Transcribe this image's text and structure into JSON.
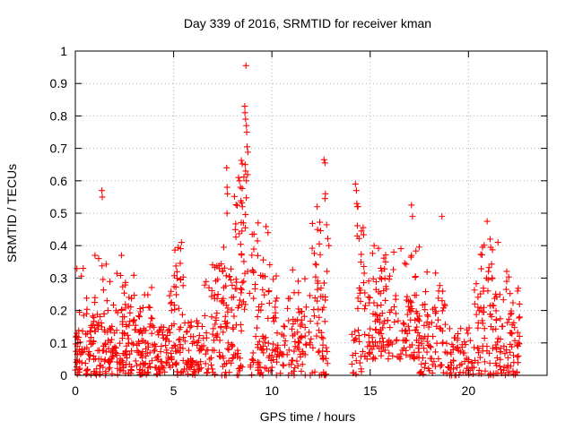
{
  "chart_data": {
    "type": "scatter",
    "title": "Day 339 of 2016, SRMTID for receiver kman",
    "xlabel": "GPS time / hours",
    "ylabel": "SRMTID / TECUs",
    "xlim": [
      0,
      24
    ],
    "ylim": [
      0,
      1
    ],
    "xticks": [
      0,
      5,
      10,
      15,
      20
    ],
    "xtick_labels": [
      "0",
      "5",
      "10",
      "15",
      "20"
    ],
    "yticks": [
      0,
      0.1,
      0.2,
      0.3,
      0.4,
      0.5,
      0.6,
      0.7,
      0.8,
      0.9,
      1
    ],
    "ytick_labels": [
      "0",
      "0.1",
      "0.2",
      "0.3",
      "0.4",
      "0.5",
      "0.6",
      "0.7",
      "0.8",
      "0.9",
      "1"
    ],
    "grid": true,
    "marker": "+",
    "color": "#ff0000",
    "density_bands": [
      {
        "x_start": 0.0,
        "x_end": 1.0,
        "y_low": 0.0,
        "y_high": 0.15,
        "density": 60
      },
      {
        "x_start": 0.0,
        "x_end": 1.0,
        "y_low": 0.15,
        "y_high": 0.33,
        "density": 14
      },
      {
        "x_start": 1.0,
        "x_end": 2.0,
        "y_low": 0.0,
        "y_high": 0.15,
        "density": 55
      },
      {
        "x_start": 1.0,
        "x_end": 2.0,
        "y_low": 0.15,
        "y_high": 0.37,
        "density": 18
      },
      {
        "x_start": 2.0,
        "x_end": 3.0,
        "y_low": 0.0,
        "y_high": 0.2,
        "density": 65
      },
      {
        "x_start": 2.0,
        "x_end": 3.0,
        "y_low": 0.2,
        "y_high": 0.32,
        "density": 16
      },
      {
        "x_start": 3.0,
        "x_end": 4.0,
        "y_low": 0.0,
        "y_high": 0.18,
        "density": 60
      },
      {
        "x_start": 3.0,
        "x_end": 4.0,
        "y_low": 0.18,
        "y_high": 0.3,
        "density": 10
      },
      {
        "x_start": 4.0,
        "x_end": 4.7,
        "y_low": 0.0,
        "y_high": 0.15,
        "density": 45
      },
      {
        "x_start": 4.7,
        "x_end": 5.5,
        "y_low": 0.0,
        "y_high": 0.3,
        "density": 55
      },
      {
        "x_start": 5.0,
        "x_end": 5.5,
        "y_low": 0.3,
        "y_high": 0.42,
        "density": 8
      },
      {
        "x_start": 5.5,
        "x_end": 6.5,
        "y_low": 0.0,
        "y_high": 0.18,
        "density": 60
      },
      {
        "x_start": 6.5,
        "x_end": 7.5,
        "y_low": 0.0,
        "y_high": 0.35,
        "density": 60
      },
      {
        "x_start": 7.5,
        "x_end": 8.5,
        "y_low": 0.0,
        "y_high": 0.3,
        "density": 65
      },
      {
        "x_start": 7.5,
        "x_end": 8.5,
        "y_low": 0.3,
        "y_high": 0.6,
        "density": 20
      },
      {
        "x_start": 8.4,
        "x_end": 8.9,
        "y_low": 0.2,
        "y_high": 0.75,
        "density": 22
      },
      {
        "x_start": 8.9,
        "x_end": 10.0,
        "y_low": 0.0,
        "y_high": 0.35,
        "density": 65
      },
      {
        "x_start": 8.9,
        "x_end": 10.0,
        "y_low": 0.35,
        "y_high": 0.48,
        "density": 8
      },
      {
        "x_start": 10.0,
        "x_end": 11.5,
        "y_low": 0.0,
        "y_high": 0.22,
        "density": 75
      },
      {
        "x_start": 10.0,
        "x_end": 11.5,
        "y_low": 0.22,
        "y_high": 0.35,
        "density": 10
      },
      {
        "x_start": 11.5,
        "x_end": 12.9,
        "y_low": 0.0,
        "y_high": 0.3,
        "density": 70
      },
      {
        "x_start": 12.0,
        "x_end": 12.9,
        "y_low": 0.3,
        "y_high": 0.55,
        "density": 14
      },
      {
        "x_start": 14.0,
        "x_end": 14.6,
        "y_low": 0.0,
        "y_high": 0.15,
        "density": 20
      },
      {
        "x_start": 14.3,
        "x_end": 14.8,
        "y_low": 0.2,
        "y_high": 0.55,
        "density": 18
      },
      {
        "x_start": 14.6,
        "x_end": 16.0,
        "y_low": 0.05,
        "y_high": 0.3,
        "density": 80
      },
      {
        "x_start": 15.0,
        "x_end": 16.0,
        "y_low": 0.3,
        "y_high": 0.4,
        "density": 10
      },
      {
        "x_start": 16.0,
        "x_end": 17.5,
        "y_low": 0.05,
        "y_high": 0.25,
        "density": 75
      },
      {
        "x_start": 16.0,
        "x_end": 17.5,
        "y_low": 0.25,
        "y_high": 0.4,
        "density": 10
      },
      {
        "x_start": 17.5,
        "x_end": 19.0,
        "y_low": 0.0,
        "y_high": 0.22,
        "density": 70
      },
      {
        "x_start": 17.5,
        "x_end": 19.0,
        "y_low": 0.22,
        "y_high": 0.32,
        "density": 8
      },
      {
        "x_start": 19.0,
        "x_end": 20.3,
        "y_low": 0.0,
        "y_high": 0.15,
        "density": 60
      },
      {
        "x_start": 20.3,
        "x_end": 21.5,
        "y_low": 0.0,
        "y_high": 0.3,
        "density": 70
      },
      {
        "x_start": 20.6,
        "x_end": 21.3,
        "y_low": 0.3,
        "y_high": 0.42,
        "density": 12
      },
      {
        "x_start": 21.5,
        "x_end": 22.6,
        "y_low": 0.0,
        "y_high": 0.25,
        "density": 60
      },
      {
        "x_start": 21.5,
        "x_end": 22.6,
        "y_low": 0.25,
        "y_high": 0.34,
        "density": 6
      }
    ],
    "points": [
      {
        "x": 8.68,
        "y": 0.955
      },
      {
        "x": 8.62,
        "y": 0.83
      },
      {
        "x": 8.63,
        "y": 0.81
      },
      {
        "x": 8.66,
        "y": 0.79
      },
      {
        "x": 8.7,
        "y": 0.77
      },
      {
        "x": 8.72,
        "y": 0.75
      },
      {
        "x": 8.74,
        "y": 0.705
      },
      {
        "x": 8.64,
        "y": 0.65
      },
      {
        "x": 8.66,
        "y": 0.63
      },
      {
        "x": 8.7,
        "y": 0.6
      },
      {
        "x": 7.7,
        "y": 0.64
      },
      {
        "x": 7.72,
        "y": 0.58
      },
      {
        "x": 7.74,
        "y": 0.56
      },
      {
        "x": 8.3,
        "y": 0.61
      },
      {
        "x": 8.35,
        "y": 0.6
      },
      {
        "x": 8.4,
        "y": 0.58
      },
      {
        "x": 8.5,
        "y": 0.52
      },
      {
        "x": 8.55,
        "y": 0.47
      },
      {
        "x": 1.35,
        "y": 0.57
      },
      {
        "x": 1.37,
        "y": 0.55
      },
      {
        "x": 12.65,
        "y": 0.665
      },
      {
        "x": 12.7,
        "y": 0.655
      },
      {
        "x": 12.72,
        "y": 0.56
      },
      {
        "x": 12.7,
        "y": 0.545
      },
      {
        "x": 12.3,
        "y": 0.52
      },
      {
        "x": 14.25,
        "y": 0.59
      },
      {
        "x": 14.3,
        "y": 0.57
      },
      {
        "x": 14.32,
        "y": 0.53
      },
      {
        "x": 14.35,
        "y": 0.52
      },
      {
        "x": 17.1,
        "y": 0.525
      },
      {
        "x": 17.15,
        "y": 0.49
      },
      {
        "x": 18.65,
        "y": 0.49
      },
      {
        "x": 20.95,
        "y": 0.475
      },
      {
        "x": 21.1,
        "y": 0.42
      },
      {
        "x": 21.5,
        "y": 0.41
      },
      {
        "x": 5.4,
        "y": 0.41
      },
      {
        "x": 9.3,
        "y": 0.47
      },
      {
        "x": 9.8,
        "y": 0.44
      },
      {
        "x": 12.9,
        "y": 0.4
      },
      {
        "x": 15.2,
        "y": 0.4
      },
      {
        "x": 16.2,
        "y": 0.38
      },
      {
        "x": 2.35,
        "y": 0.37
      },
      {
        "x": 1.0,
        "y": 0.37
      },
      {
        "x": 0.4,
        "y": 0.33
      },
      {
        "x": 22.5,
        "y": 0.26
      },
      {
        "x": 22.6,
        "y": 0.18
      },
      {
        "x": 22.55,
        "y": 0.1
      },
      {
        "x": 0.05,
        "y": 0.04
      },
      {
        "x": 0.1,
        "y": 0.09
      }
    ]
  }
}
